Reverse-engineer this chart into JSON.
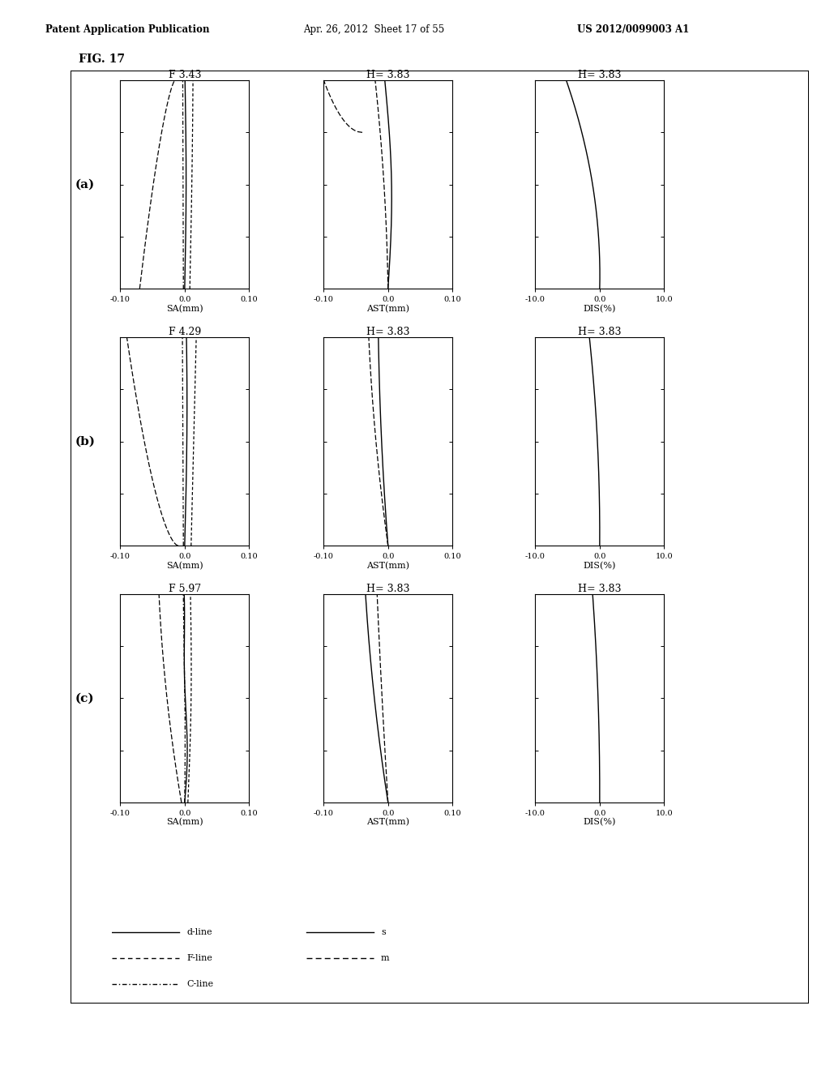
{
  "header_left": "Patent Application Publication",
  "header_mid": "Apr. 26, 2012  Sheet 17 of 55",
  "header_right": "US 2012/0099003 A1",
  "fig_label": "FIG. 17",
  "row_labels": [
    "(a)",
    "(b)",
    "(c)"
  ],
  "col0_titles": [
    "F 3.43",
    "F 4.29",
    "F 5.97"
  ],
  "col1_titles": [
    "H= 3.83",
    "H= 3.83",
    "H= 3.83"
  ],
  "col2_titles": [
    "H= 3.83",
    "H= 3.83",
    "H= 3.83"
  ],
  "col0_xlabel": "SA(mm)",
  "col1_xlabel": "AST(mm)",
  "col2_xlabel": "DIS(%)",
  "col0_xlim": [
    -0.1,
    0.1
  ],
  "col1_xlim": [
    -0.1,
    0.1
  ],
  "col2_xlim": [
    -10.0,
    10.0
  ],
  "col0_xticks": [
    -0.1,
    0.0,
    0.1
  ],
  "col1_xticks": [
    -0.1,
    0.0,
    0.1
  ],
  "col2_xticks": [
    -10.0,
    0.0,
    10.0
  ],
  "col0_xticklabels": [
    "-0.10",
    "0.0",
    "0.10"
  ],
  "col1_xticklabels": [
    "-0.10",
    "0.0",
    "0.10"
  ],
  "col2_xticklabels": [
    "-10.0",
    "0.0",
    "10.0"
  ],
  "background": "#ffffff"
}
